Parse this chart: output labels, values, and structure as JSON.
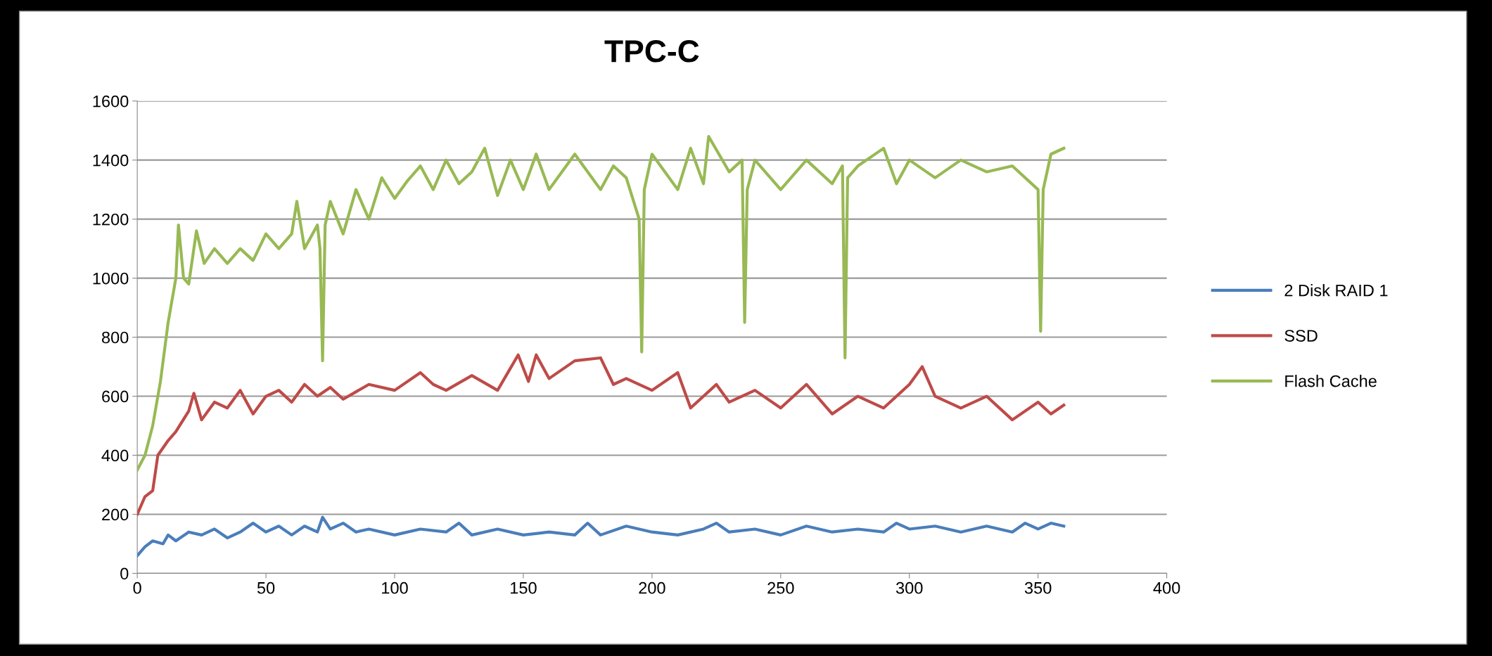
{
  "chart_data": {
    "type": "line",
    "title": "TPC-C",
    "xlim": [
      0,
      400
    ],
    "xticks": [
      0,
      50,
      100,
      150,
      200,
      250,
      300,
      350,
      400
    ],
    "ylim": [
      0,
      1600
    ],
    "yticks": [
      0,
      200,
      400,
      600,
      800,
      1000,
      1200,
      1400,
      1600
    ],
    "grid": "y",
    "legend": "right",
    "marker": "none",
    "line_style": "solid",
    "series": [
      {
        "name": "2 Disk RAID 1",
        "color": "#4a7ebb",
        "x": [
          0,
          3,
          6,
          10,
          12,
          15,
          20,
          25,
          30,
          35,
          40,
          45,
          50,
          55,
          60,
          65,
          70,
          72,
          75,
          80,
          85,
          90,
          100,
          110,
          120,
          125,
          130,
          140,
          150,
          160,
          170,
          175,
          180,
          190,
          200,
          210,
          220,
          225,
          230,
          240,
          250,
          260,
          270,
          280,
          290,
          295,
          300,
          310,
          320,
          330,
          340,
          345,
          350,
          355,
          360
        ],
        "values": [
          60,
          90,
          110,
          100,
          130,
          110,
          140,
          130,
          150,
          120,
          140,
          170,
          140,
          160,
          130,
          160,
          140,
          190,
          150,
          170,
          140,
          150,
          130,
          150,
          140,
          170,
          130,
          150,
          130,
          140,
          130,
          170,
          130,
          160,
          140,
          130,
          150,
          170,
          140,
          150,
          130,
          160,
          140,
          150,
          140,
          170,
          150,
          160,
          140,
          160,
          140,
          170,
          150,
          170,
          160
        ]
      },
      {
        "name": "SSD",
        "color": "#be4b48",
        "x": [
          0,
          3,
          6,
          8,
          12,
          15,
          20,
          22,
          25,
          30,
          35,
          40,
          45,
          50,
          55,
          60,
          65,
          70,
          75,
          80,
          90,
          100,
          110,
          115,
          120,
          130,
          140,
          148,
          152,
          155,
          160,
          170,
          180,
          185,
          190,
          200,
          210,
          215,
          225,
          230,
          240,
          250,
          260,
          270,
          280,
          290,
          300,
          305,
          310,
          320,
          330,
          340,
          350,
          355,
          360
        ],
        "values": [
          200,
          260,
          280,
          400,
          450,
          480,
          550,
          610,
          520,
          580,
          560,
          620,
          540,
          600,
          620,
          580,
          640,
          600,
          630,
          590,
          640,
          620,
          680,
          640,
          620,
          670,
          620,
          740,
          650,
          740,
          660,
          720,
          730,
          640,
          660,
          620,
          680,
          560,
          640,
          580,
          620,
          560,
          640,
          540,
          600,
          560,
          640,
          700,
          600,
          560,
          600,
          520,
          580,
          540,
          570
        ]
      },
      {
        "name": "Flash Cache",
        "color": "#98b954",
        "x": [
          0,
          3,
          6,
          9,
          12,
          15,
          16,
          18,
          20,
          23,
          26,
          30,
          35,
          40,
          45,
          50,
          55,
          60,
          62,
          65,
          70,
          71,
          72,
          73,
          75,
          80,
          85,
          90,
          95,
          100,
          105,
          110,
          115,
          120,
          125,
          130,
          135,
          140,
          145,
          150,
          155,
          160,
          170,
          180,
          185,
          190,
          195,
          196,
          197,
          200,
          210,
          215,
          220,
          222,
          230,
          235,
          236,
          237,
          240,
          250,
          260,
          270,
          274,
          275,
          276,
          280,
          290,
          295,
          300,
          310,
          320,
          330,
          340,
          350,
          351,
          352,
          355,
          360
        ],
        "values": [
          350,
          400,
          500,
          650,
          850,
          1000,
          1180,
          1000,
          980,
          1160,
          1050,
          1100,
          1050,
          1100,
          1060,
          1150,
          1100,
          1150,
          1260,
          1100,
          1180,
          1100,
          720,
          1180,
          1260,
          1150,
          1300,
          1200,
          1340,
          1270,
          1330,
          1380,
          1300,
          1400,
          1320,
          1360,
          1440,
          1280,
          1400,
          1300,
          1420,
          1300,
          1420,
          1300,
          1380,
          1340,
          1200,
          750,
          1300,
          1420,
          1300,
          1440,
          1320,
          1480,
          1360,
          1400,
          850,
          1300,
          1400,
          1300,
          1400,
          1320,
          1380,
          730,
          1340,
          1380,
          1440,
          1320,
          1400,
          1340,
          1400,
          1360,
          1380,
          1300,
          820,
          1300,
          1420,
          1440
        ]
      }
    ]
  }
}
